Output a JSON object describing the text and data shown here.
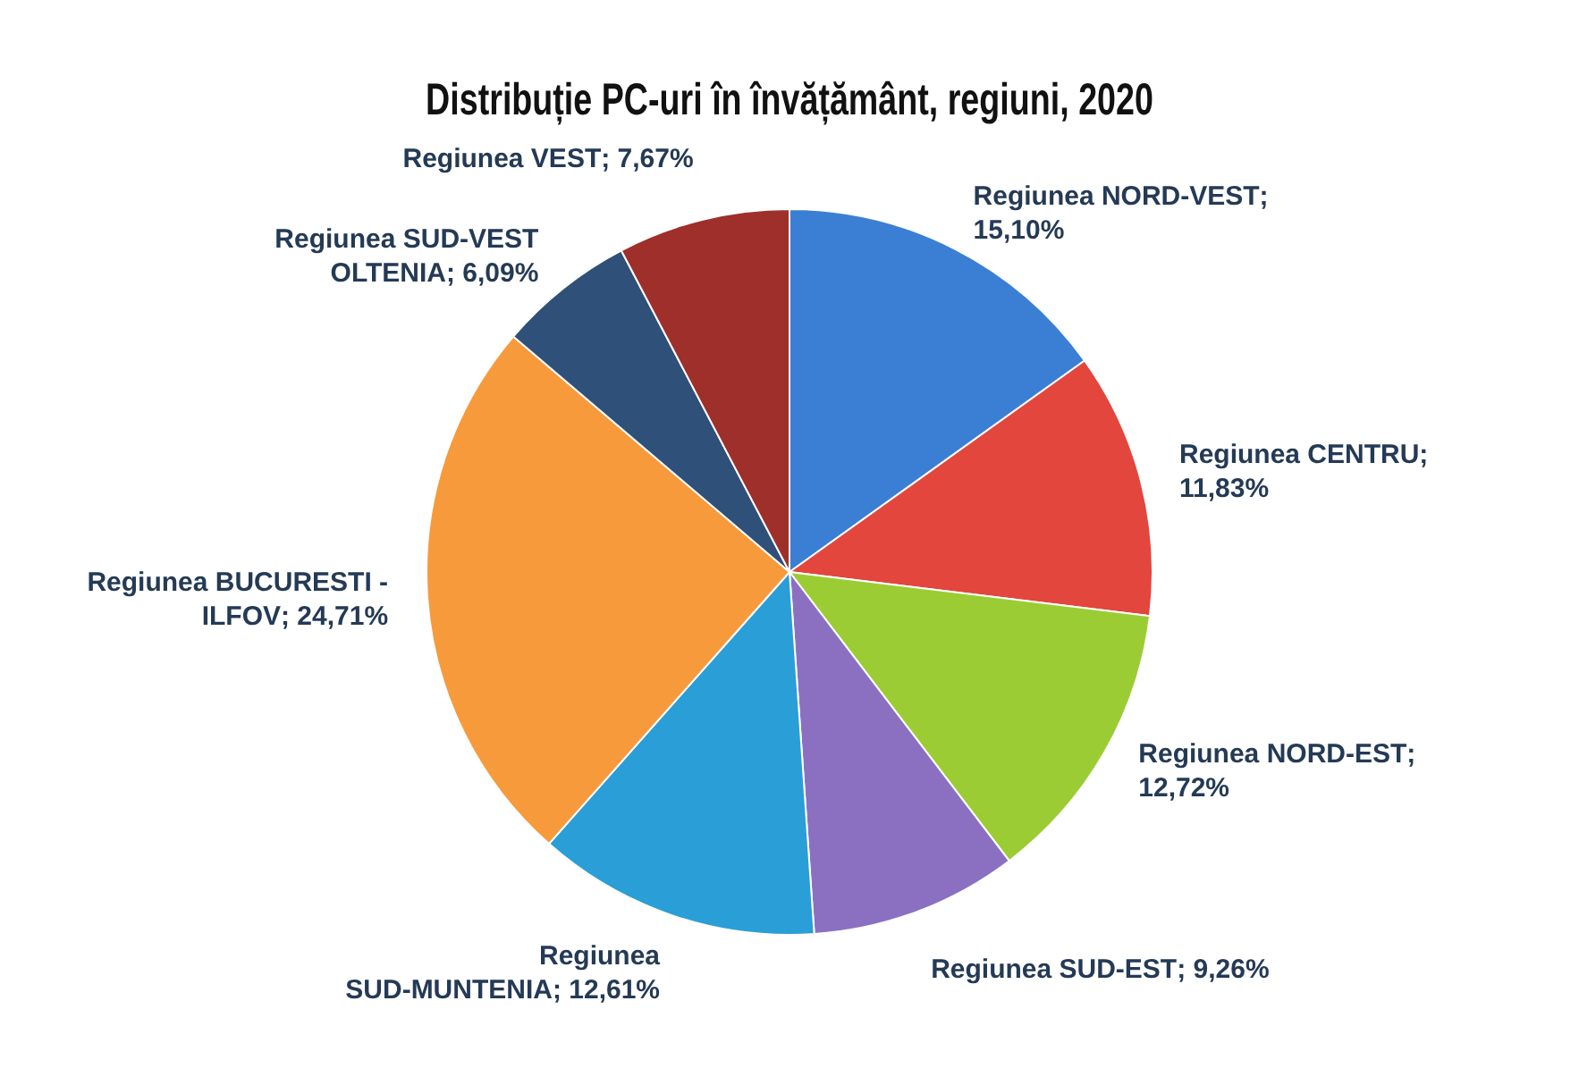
{
  "chart_data": {
    "type": "pie",
    "title": "Distribuție PC-uri în învățământ, regiuni, 2020",
    "categories": [
      "Regiunea NORD-VEST",
      "Regiunea CENTRU",
      "Regiunea NORD-EST",
      "Regiunea SUD-EST",
      "Regiunea SUD-MUNTENIA",
      "Regiunea BUCURESTI - ILFOV",
      "Regiunea SUD-VEST OLTENIA",
      "Regiunea VEST"
    ],
    "values": [
      15.1,
      11.83,
      12.72,
      9.26,
      12.61,
      24.71,
      6.09,
      7.67
    ],
    "value_labels": [
      "; 15,10%",
      "; 11,83%",
      "; 12,72%",
      "; 9,26%",
      "; 12,61%",
      "; 24,71%",
      "; 6,09%",
      "; 7,67%"
    ],
    "colors": [
      "#3b7fd4",
      "#e2463d",
      "#9ccc34",
      "#8b70c2",
      "#2a9ed6",
      "#f79a3c",
      "#2f5078",
      "#9e2f2a"
    ],
    "legend": false
  }
}
